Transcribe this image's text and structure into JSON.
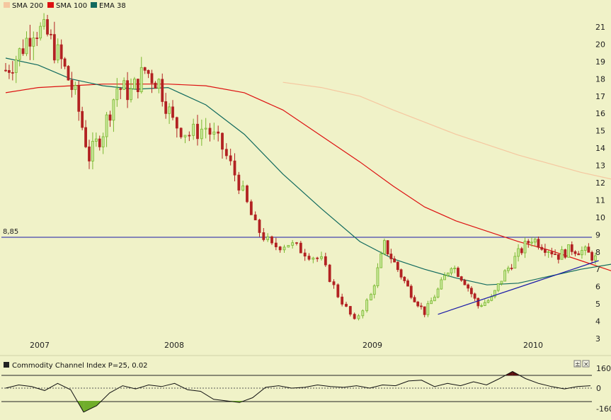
{
  "legend": [
    {
      "label": "SMA 200",
      "color": "#f5c7a0"
    },
    {
      "label": "SMA 100",
      "color": "#dd1111"
    },
    {
      "label": "EMA 38",
      "color": "#116a5e"
    }
  ],
  "colors": {
    "background": "#f0f2c8",
    "up_candle": "#7ab830",
    "down_candle": "#b22222",
    "level_line": "#1a1aa8",
    "trend_line": "#1a1aa8",
    "cci_line": "#111111",
    "cci_pos_fill": "#5a0f0f",
    "cci_neg_fill": "#6fad2a"
  },
  "price_axis": {
    "ticks": [
      "3",
      "4",
      "5",
      "6",
      "7",
      "8",
      "9",
      "10",
      "11",
      "12",
      "13",
      "14",
      "15",
      "16",
      "17",
      "18",
      "19",
      "20",
      "21"
    ]
  },
  "x_axis": {
    "labels": [
      "2007",
      "2008",
      "2009",
      "2010"
    ]
  },
  "level_label": "8,85",
  "cci": {
    "title": "Commodity Channel Index P=25, 0.02",
    "ticks": [
      "160",
      "0",
      "-160"
    ],
    "buttons": [
      {
        "name": "maximize-button",
        "symbol": "±"
      },
      {
        "name": "close-button",
        "symbol": "×"
      }
    ]
  },
  "chart_data": [
    {
      "type": "candlestick",
      "title": "",
      "ylim": [
        3,
        22
      ],
      "x_labels": [
        "2007",
        "2008",
        "2009",
        "2010"
      ],
      "level_line": 8.85,
      "trend_line": {
        "from": {
          "date": "2009-06",
          "value": 4.4
        },
        "to": {
          "date": "2010-06",
          "value": 7.5
        }
      },
      "series": [
        {
          "name": "SMA 200",
          "approx_values": [
            null,
            null,
            null,
            null,
            null,
            null,
            null,
            null,
            17.8,
            17.5,
            17.0,
            16.2,
            15.5,
            14.8,
            14.2,
            13.6,
            13.1,
            12.6,
            12.2
          ]
        },
        {
          "name": "SMA 100",
          "approx_values": [
            17.2,
            17.5,
            17.6,
            17.7,
            17.7,
            17.7,
            17.6,
            17.2,
            16.2,
            14.7,
            13.2,
            11.8,
            10.6,
            9.8,
            9.2,
            8.6,
            8.1,
            7.5,
            6.9
          ]
        },
        {
          "name": "EMA 38",
          "approx_values": [
            19.2,
            18.8,
            18.0,
            17.6,
            17.4,
            17.5,
            16.5,
            14.8,
            12.5,
            10.5,
            8.6,
            7.6,
            7.0,
            6.5,
            6.1,
            6.2,
            6.6,
            7.0,
            7.3
          ]
        }
      ],
      "monthly_closes_approx": {
        "2007": [
          18.5,
          19.5,
          21.0,
          20.5,
          19.0,
          17.0,
          13.5,
          15.0,
          17.5,
          17.2,
          18.5,
          17.8
        ],
        "2008": [
          15.5,
          14.8,
          15.2,
          14.0,
          12.0,
          9.5,
          8.3,
          8.5,
          8.0,
          7.5,
          5.5,
          4.0
        ],
        "2009": [
          5.5,
          8.4,
          7.0,
          5.6,
          4.5,
          5.8,
          7.3,
          6.3,
          4.9,
          5.3,
          6.8,
          7.9
        ],
        "2010": [
          8.8,
          8.3,
          7.8,
          8.2,
          8.0,
          7.5
        ]
      }
    },
    {
      "type": "area",
      "title": "Commodity Channel Index P=25, 0.02",
      "ylim": [
        -160,
        160
      ],
      "levels": [
        160,
        0,
        -160
      ],
      "values_approx": [
        0,
        40,
        20,
        -30,
        60,
        -20,
        -300,
        -220,
        -60,
        30,
        -10,
        40,
        20,
        60,
        -20,
        -40,
        -140,
        -160,
        -180,
        -120,
        10,
        30,
        0,
        10,
        40,
        20,
        10,
        30,
        0,
        40,
        30,
        90,
        100,
        20,
        60,
        30,
        80,
        40,
        120,
        210,
        120,
        60,
        20,
        -10,
        20,
        30
      ]
    }
  ]
}
